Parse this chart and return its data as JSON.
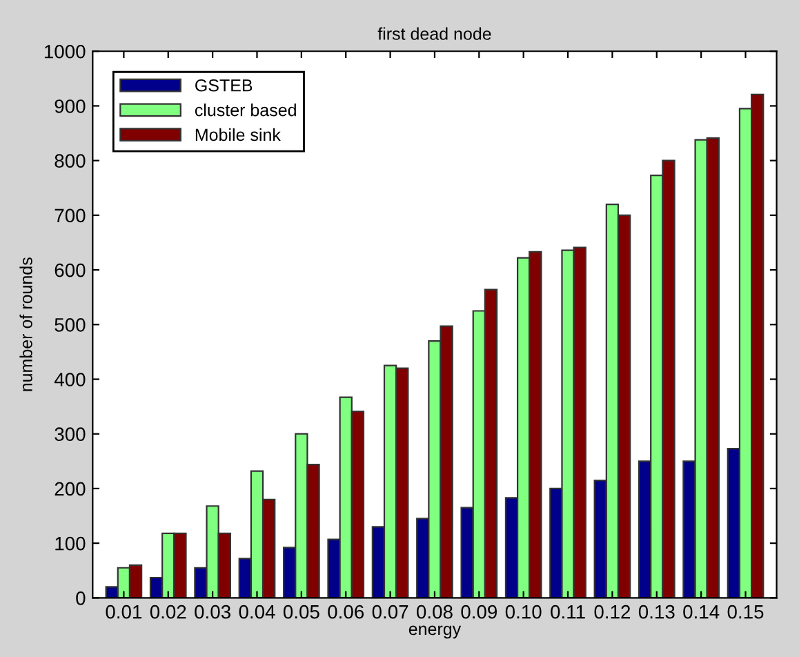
{
  "chart_data": {
    "type": "bar",
    "title": "first dead node",
    "xlabel": "energy",
    "ylabel": "number of rounds",
    "categories": [
      "0.01",
      "0.02",
      "0.03",
      "0.04",
      "0.05",
      "0.06",
      "0.07",
      "0.08",
      "0.09",
      "0.10",
      "0.11",
      "0.12",
      "0.13",
      "0.14",
      "0.15"
    ],
    "series": [
      {
        "name": "GSTEB",
        "color": "#00008b",
        "values": [
          20,
          37,
          55,
          72,
          92,
          107,
          130,
          145,
          165,
          183,
          200,
          215,
          250,
          250,
          273
        ]
      },
      {
        "name": "cluster based",
        "color": "#80ff80",
        "values": [
          55,
          118,
          168,
          232,
          300,
          367,
          425,
          470,
          525,
          622,
          636,
          720,
          773,
          838,
          895
        ]
      },
      {
        "name": "Mobile sink",
        "color": "#800000",
        "values": [
          60,
          118,
          118,
          180,
          244,
          341,
          420,
          497,
          564,
          633,
          641,
          700,
          800,
          841,
          921
        ]
      }
    ],
    "ylim": [
      0,
      1000
    ],
    "yticks": [
      0,
      100,
      200,
      300,
      400,
      500,
      600,
      700,
      800,
      900,
      1000
    ],
    "grid": false,
    "legend": "top left"
  }
}
